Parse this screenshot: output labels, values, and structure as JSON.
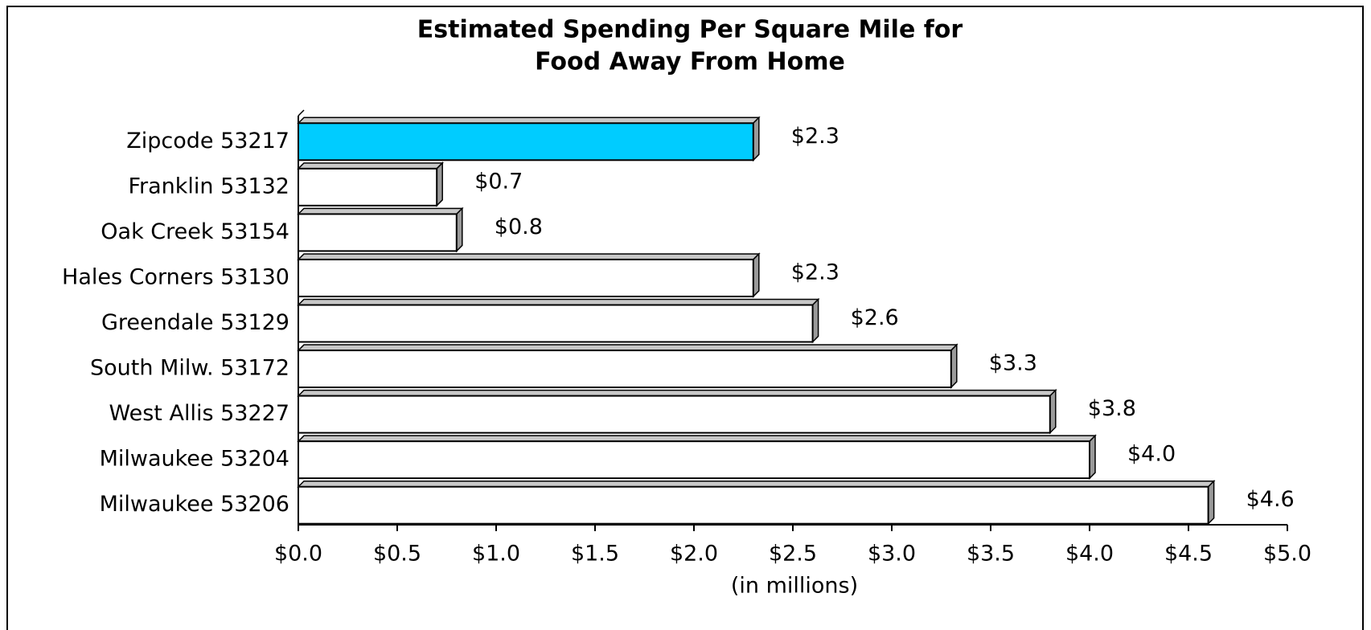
{
  "chart_data": {
    "type": "hbar",
    "title": [
      "Estimated Spending Per Square Mile for",
      "Food Away From Home"
    ],
    "x_label": "(in millions)",
    "categories": [
      "Zipcode 53217",
      "Franklin 53132",
      "Oak Creek 53154",
      "Hales Corners 53130",
      "Greendale 53129",
      "South Milw. 53172",
      "West Allis 53227",
      "Milwaukee 53204",
      "Milwaukee 53206"
    ],
    "values": [
      2.3,
      0.7,
      0.8,
      2.3,
      2.6,
      3.3,
      3.8,
      4.0,
      4.6
    ],
    "value_labels": [
      "$2.3",
      "$0.7",
      "$0.8",
      "$2.3",
      "$2.6",
      "$3.3",
      "$3.8",
      "$4.0",
      "$4.6"
    ],
    "colors": [
      "#00ccff",
      "#ffffff",
      "#ffffff",
      "#ffffff",
      "#ffffff",
      "#ffffff",
      "#ffffff",
      "#ffffff",
      "#ffffff"
    ],
    "xlim": [
      0,
      5
    ],
    "xticks": [
      {
        "value": 0,
        "label": "$0.0"
      },
      {
        "value": 0.5,
        "label": "$0.5"
      },
      {
        "value": 1,
        "label": "$1.0"
      },
      {
        "value": 1.5,
        "label": "$1.5"
      },
      {
        "value": 2,
        "label": "$2.0"
      },
      {
        "value": 2.5,
        "label": "$2.5"
      },
      {
        "value": 3,
        "label": "$3.0"
      },
      {
        "value": 3.5,
        "label": "$3.5"
      },
      {
        "value": 4,
        "label": "$4.0"
      },
      {
        "value": 4.5,
        "label": "$4.5"
      },
      {
        "value": 5,
        "label": "$5.0"
      }
    ]
  }
}
